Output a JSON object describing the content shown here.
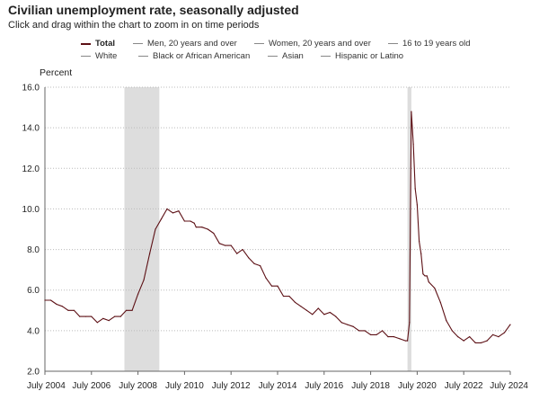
{
  "header": {
    "title": "Civilian unemployment rate, seasonally adjusted",
    "subtitle": "Click and drag within the chart to zoom in on time periods"
  },
  "legend": {
    "items": [
      {
        "label": "Total",
        "active": true
      },
      {
        "label": "Men, 20 years and over",
        "active": false
      },
      {
        "label": "Women, 20 years and over",
        "active": false
      },
      {
        "label": "16 to 19 years old",
        "active": false
      },
      {
        "label": "White",
        "active": false
      },
      {
        "label": "Black or African American",
        "active": false
      },
      {
        "label": "Asian",
        "active": false
      },
      {
        "label": "Hispanic or Latino",
        "active": false
      }
    ]
  },
  "colors": {
    "line": "#5c0f14",
    "recession": "#dddddd",
    "grid": "#bbbbbb",
    "axis": "#666666"
  },
  "chart_data": {
    "type": "line",
    "ylabel": "Percent",
    "ylim": [
      2.0,
      16.0
    ],
    "yticks": [
      "2.0",
      "4.0",
      "6.0",
      "8.0",
      "10.0",
      "12.0",
      "14.0",
      "16.0"
    ],
    "xlim": [
      "2004-07",
      "2024-07"
    ],
    "xticks": [
      "July 2004",
      "July 2006",
      "July 2008",
      "July 2010",
      "July 2012",
      "July 2014",
      "July 2016",
      "July 2018",
      "July 2020",
      "July 2022",
      "July 2024"
    ],
    "grid": "horizontal dotted",
    "recession_periods": [
      {
        "start": "2007-12",
        "end": "2009-06"
      },
      {
        "start": "2020-02",
        "end": "2020-04"
      }
    ],
    "series": [
      {
        "name": "Total",
        "points": [
          [
            "2004-07",
            5.5
          ],
          [
            "2004-10",
            5.5
          ],
          [
            "2005-01",
            5.3
          ],
          [
            "2005-04",
            5.2
          ],
          [
            "2005-07",
            5.0
          ],
          [
            "2005-10",
            5.0
          ],
          [
            "2006-01",
            4.7
          ],
          [
            "2006-04",
            4.7
          ],
          [
            "2006-07",
            4.7
          ],
          [
            "2006-10",
            4.4
          ],
          [
            "2007-01",
            4.6
          ],
          [
            "2007-04",
            4.5
          ],
          [
            "2007-07",
            4.7
          ],
          [
            "2007-10",
            4.7
          ],
          [
            "2008-01",
            5.0
          ],
          [
            "2008-04",
            5.0
          ],
          [
            "2008-07",
            5.8
          ],
          [
            "2008-10",
            6.5
          ],
          [
            "2009-01",
            7.8
          ],
          [
            "2009-04",
            9.0
          ],
          [
            "2009-07",
            9.5
          ],
          [
            "2009-10",
            10.0
          ],
          [
            "2010-01",
            9.8
          ],
          [
            "2010-04",
            9.9
          ],
          [
            "2010-07",
            9.4
          ],
          [
            "2010-10",
            9.4
          ],
          [
            "2010-12",
            9.3
          ],
          [
            "2011-01",
            9.1
          ],
          [
            "2011-04",
            9.1
          ],
          [
            "2011-07",
            9.0
          ],
          [
            "2011-10",
            8.8
          ],
          [
            "2012-01",
            8.3
          ],
          [
            "2012-04",
            8.2
          ],
          [
            "2012-07",
            8.2
          ],
          [
            "2012-10",
            7.8
          ],
          [
            "2013-01",
            8.0
          ],
          [
            "2013-04",
            7.6
          ],
          [
            "2013-07",
            7.3
          ],
          [
            "2013-10",
            7.2
          ],
          [
            "2014-01",
            6.6
          ],
          [
            "2014-04",
            6.2
          ],
          [
            "2014-07",
            6.2
          ],
          [
            "2014-10",
            5.7
          ],
          [
            "2015-01",
            5.7
          ],
          [
            "2015-04",
            5.4
          ],
          [
            "2015-07",
            5.2
          ],
          [
            "2015-10",
            5.0
          ],
          [
            "2016-01",
            4.8
          ],
          [
            "2016-04",
            5.1
          ],
          [
            "2016-07",
            4.8
          ],
          [
            "2016-10",
            4.9
          ],
          [
            "2017-01",
            4.7
          ],
          [
            "2017-04",
            4.4
          ],
          [
            "2017-07",
            4.3
          ],
          [
            "2017-10",
            4.2
          ],
          [
            "2018-01",
            4.0
          ],
          [
            "2018-04",
            4.0
          ],
          [
            "2018-07",
            3.8
          ],
          [
            "2018-10",
            3.8
          ],
          [
            "2019-01",
            4.0
          ],
          [
            "2019-04",
            3.7
          ],
          [
            "2019-07",
            3.7
          ],
          [
            "2019-10",
            3.6
          ],
          [
            "2020-01",
            3.5
          ],
          [
            "2020-02",
            3.5
          ],
          [
            "2020-03",
            4.4
          ],
          [
            "2020-04",
            14.8
          ],
          [
            "2020-05",
            13.2
          ],
          [
            "2020-06",
            11.0
          ],
          [
            "2020-07",
            10.2
          ],
          [
            "2020-08",
            8.4
          ],
          [
            "2020-09",
            7.8
          ],
          [
            "2020-10",
            6.8
          ],
          [
            "2020-11",
            6.7
          ],
          [
            "2020-12",
            6.7
          ],
          [
            "2021-01",
            6.4
          ],
          [
            "2021-04",
            6.1
          ],
          [
            "2021-07",
            5.4
          ],
          [
            "2021-10",
            4.5
          ],
          [
            "2022-01",
            4.0
          ],
          [
            "2022-04",
            3.7
          ],
          [
            "2022-07",
            3.5
          ],
          [
            "2022-10",
            3.7
          ],
          [
            "2023-01",
            3.4
          ],
          [
            "2023-04",
            3.4
          ],
          [
            "2023-07",
            3.5
          ],
          [
            "2023-10",
            3.8
          ],
          [
            "2024-01",
            3.7
          ],
          [
            "2024-04",
            3.9
          ],
          [
            "2024-07",
            4.3
          ]
        ]
      }
    ]
  }
}
